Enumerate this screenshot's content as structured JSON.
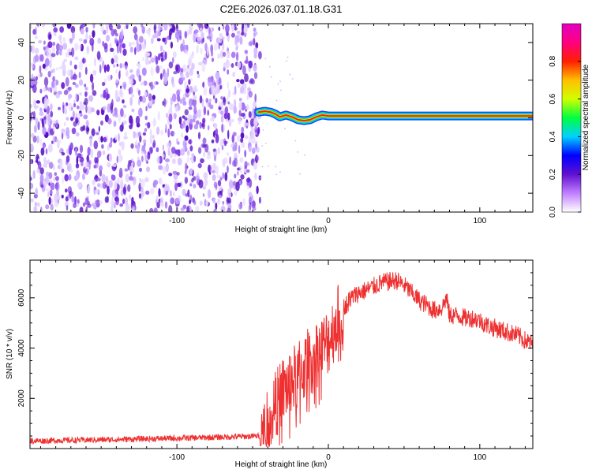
{
  "chart_data": [
    {
      "type": "heatmap",
      "title": "C2E6.2026.037.01.18.G31",
      "xlabel": "Height of straight line (km)",
      "ylabel": "Frequency (Hz)",
      "xlim": [
        -197,
        135
      ],
      "ylim": [
        -50,
        50
      ],
      "x_ticks": [
        -100,
        0,
        100
      ],
      "x_tick_labels": [
        "-100",
        "0",
        "100"
      ],
      "y_ticks": [
        -40,
        -20,
        0,
        20,
        40
      ],
      "y_tick_labels": [
        "-40",
        "-20",
        "0",
        "20",
        "40"
      ],
      "noise_region_x": [
        -197,
        -45
      ],
      "signal_track": [
        {
          "x": -46,
          "y": 3
        },
        {
          "x": -42,
          "y": 3.5
        },
        {
          "x": -38,
          "y": 3
        },
        {
          "x": -35,
          "y": 2
        },
        {
          "x": -32,
          "y": 0.5
        },
        {
          "x": -28,
          "y": 1.5
        },
        {
          "x": -24,
          "y": 0.5
        },
        {
          "x": -20,
          "y": -1
        },
        {
          "x": -16,
          "y": -1.5
        },
        {
          "x": -12,
          "y": -1
        },
        {
          "x": -8,
          "y": 0.5
        },
        {
          "x": -4,
          "y": 1.5
        },
        {
          "x": 0,
          "y": 1
        },
        {
          "x": 135,
          "y": 1
        }
      ],
      "colorbar": {
        "label": "Normalized spectral amplitude",
        "range": [
          0,
          1
        ],
        "ticks": [
          0.0,
          0.2,
          0.4,
          0.6,
          0.8
        ],
        "tick_labels": [
          "0.0",
          "0.2",
          "0.4",
          "0.6",
          "0.8"
        ],
        "colors": [
          "#ffffff",
          "#c080ff",
          "#6010d0",
          "#0000ff",
          "#00d0ff",
          "#00ff40",
          "#d0ff00",
          "#ffc000",
          "#ff2000",
          "#ff0080",
          "#e000c0"
        ]
      }
    },
    {
      "type": "line",
      "xlabel": "Height of straight line (km)",
      "ylabel": "SNR (10 * v/v)",
      "xlim": [
        -197,
        135
      ],
      "ylim": [
        0,
        7500
      ],
      "x_ticks": [
        -100,
        0,
        100
      ],
      "x_tick_labels": [
        "-100",
        "0",
        "100"
      ],
      "y_ticks": [
        2000,
        4000,
        6000
      ],
      "y_tick_labels": [
        "2000",
        "4000",
        "6000"
      ],
      "series": [
        {
          "name": "SNR",
          "color": "#ee3030",
          "x": [
            -197,
            -180,
            -160,
            -140,
            -120,
            -100,
            -80,
            -60,
            -45,
            -40,
            -35,
            -30,
            -25,
            -20,
            -15,
            -10,
            -5,
            0,
            5,
            10,
            15,
            20,
            25,
            30,
            35,
            40,
            45,
            50,
            55,
            60,
            65,
            70,
            75,
            78,
            80,
            85,
            90,
            95,
            100,
            105,
            110,
            115,
            120,
            125,
            130,
            135
          ],
          "y": [
            300,
            320,
            340,
            360,
            390,
            410,
            440,
            470,
            500,
            900,
            1700,
            2300,
            2600,
            2900,
            3300,
            3700,
            3900,
            4300,
            5000,
            5600,
            6000,
            6200,
            6300,
            6450,
            6600,
            6650,
            6700,
            6500,
            6200,
            5900,
            5700,
            5500,
            5600,
            6000,
            5300,
            5300,
            5200,
            5200,
            5100,
            4900,
            4800,
            4700,
            4600,
            4500,
            4300,
            4150
          ]
        }
      ]
    }
  ]
}
